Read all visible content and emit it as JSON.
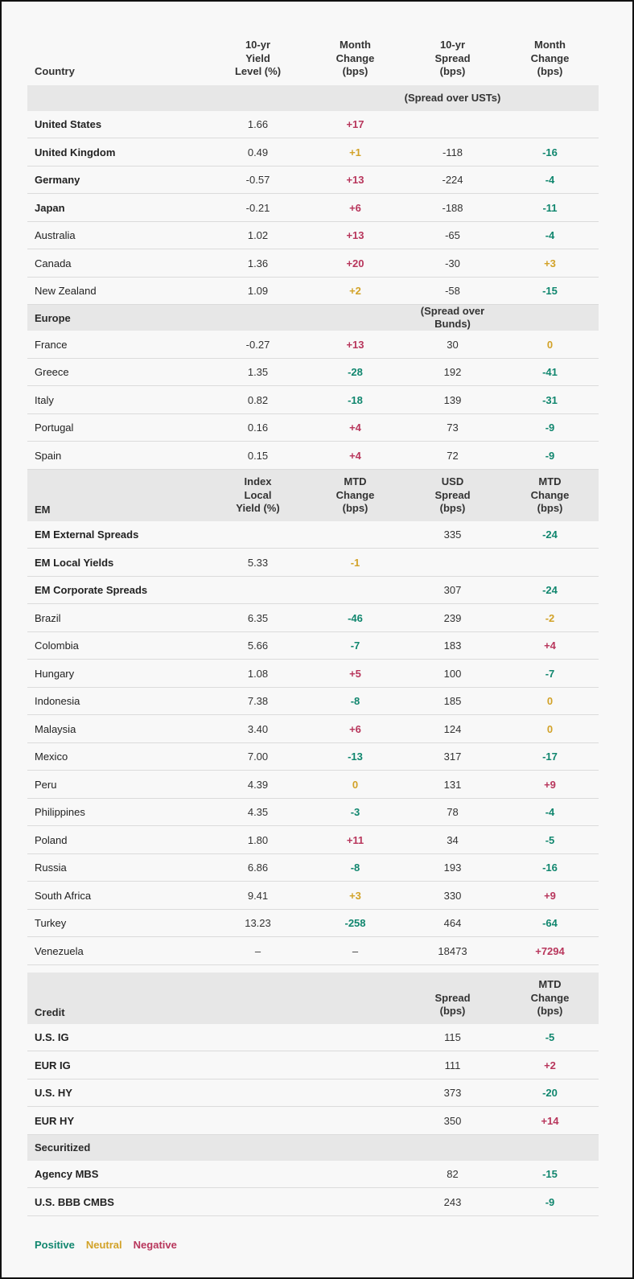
{
  "colors": {
    "positive": "#10866E",
    "neutral": "#D2A228",
    "negative": "#B8365C",
    "bar_bg": "#E7E7E7",
    "row_border": "#DBDBDB",
    "page_bg": "#F8F8F8"
  },
  "chart_data": {
    "type": "table",
    "header": {
      "country": "Country",
      "cols": [
        "10-yr\nYield\nLevel (%)",
        "Month\nChange\n(bps)",
        "10-yr\nSpread\n(bps)",
        "Month\nChange\n(bps)"
      ]
    },
    "groups": [
      {
        "bar": {
          "label": "",
          "cols": [
            "",
            "",
            "(Spread over USTs)",
            ""
          ]
        },
        "rows": [
          {
            "label": "United States",
            "bold": true,
            "cells": [
              {
                "v": "1.66"
              },
              {
                "v": "+17",
                "c": "negative"
              },
              {
                "v": ""
              },
              {
                "v": ""
              }
            ]
          },
          {
            "label": "United Kingdom",
            "bold": true,
            "cells": [
              {
                "v": "0.49"
              },
              {
                "v": "+1",
                "c": "neutral"
              },
              {
                "v": "-118"
              },
              {
                "v": "-16",
                "c": "positive"
              }
            ]
          },
          {
            "label": "Germany",
            "bold": true,
            "cells": [
              {
                "v": "-0.57"
              },
              {
                "v": "+13",
                "c": "negative"
              },
              {
                "v": "-224"
              },
              {
                "v": "-4",
                "c": "positive"
              }
            ]
          },
          {
            "label": "Japan",
            "bold": true,
            "cells": [
              {
                "v": "-0.21"
              },
              {
                "v": "+6",
                "c": "negative"
              },
              {
                "v": "-188"
              },
              {
                "v": "-11",
                "c": "positive"
              }
            ]
          },
          {
            "label": "Australia",
            "bold": false,
            "cells": [
              {
                "v": "1.02"
              },
              {
                "v": "+13",
                "c": "negative"
              },
              {
                "v": "-65"
              },
              {
                "v": "-4",
                "c": "positive"
              }
            ]
          },
          {
            "label": "Canada",
            "bold": false,
            "cells": [
              {
                "v": "1.36"
              },
              {
                "v": "+20",
                "c": "negative"
              },
              {
                "v": "-30"
              },
              {
                "v": "+3",
                "c": "neutral"
              }
            ]
          },
          {
            "label": "New Zealand",
            "bold": false,
            "cells": [
              {
                "v": "1.09"
              },
              {
                "v": "+2",
                "c": "neutral"
              },
              {
                "v": "-58"
              },
              {
                "v": "-15",
                "c": "positive"
              }
            ]
          }
        ]
      },
      {
        "bar": {
          "label": "Europe",
          "cols": [
            "",
            "",
            "(Spread over Bunds)",
            ""
          ]
        },
        "rows": [
          {
            "label": "France",
            "bold": false,
            "cells": [
              {
                "v": "-0.27"
              },
              {
                "v": "+13",
                "c": "negative"
              },
              {
                "v": "30"
              },
              {
                "v": "0",
                "c": "neutral"
              }
            ]
          },
          {
            "label": "Greece",
            "bold": false,
            "cells": [
              {
                "v": "1.35"
              },
              {
                "v": "-28",
                "c": "positive"
              },
              {
                "v": "192"
              },
              {
                "v": "-41",
                "c": "positive"
              }
            ]
          },
          {
            "label": "Italy",
            "bold": false,
            "cells": [
              {
                "v": "0.82"
              },
              {
                "v": "-18",
                "c": "positive"
              },
              {
                "v": "139"
              },
              {
                "v": "-31",
                "c": "positive"
              }
            ]
          },
          {
            "label": "Portugal",
            "bold": false,
            "cells": [
              {
                "v": "0.16"
              },
              {
                "v": "+4",
                "c": "negative"
              },
              {
                "v": "73"
              },
              {
                "v": "-9",
                "c": "positive"
              }
            ]
          },
          {
            "label": "Spain",
            "bold": false,
            "cells": [
              {
                "v": "0.15"
              },
              {
                "v": "+4",
                "c": "negative"
              },
              {
                "v": "72"
              },
              {
                "v": "-9",
                "c": "positive"
              }
            ]
          }
        ]
      },
      {
        "bar": {
          "label": "EM",
          "cols": [
            "Index\nLocal\nYield (%)",
            "MTD\nChange\n(bps)",
            "USD\nSpread\n(bps)",
            "MTD\nChange\n(bps)"
          ]
        },
        "rows": [
          {
            "label": "EM External Spreads",
            "bold": true,
            "cells": [
              {
                "v": ""
              },
              {
                "v": ""
              },
              {
                "v": "335"
              },
              {
                "v": "-24",
                "c": "positive"
              }
            ]
          },
          {
            "label": "EM Local Yields",
            "bold": true,
            "cells": [
              {
                "v": "5.33"
              },
              {
                "v": "-1",
                "c": "neutral"
              },
              {
                "v": ""
              },
              {
                "v": ""
              }
            ]
          },
          {
            "label": "EM Corporate Spreads",
            "bold": true,
            "cells": [
              {
                "v": ""
              },
              {
                "v": ""
              },
              {
                "v": "307"
              },
              {
                "v": "-24",
                "c": "positive"
              }
            ]
          },
          {
            "label": "Brazil",
            "bold": false,
            "cells": [
              {
                "v": "6.35"
              },
              {
                "v": "-46",
                "c": "positive"
              },
              {
                "v": "239"
              },
              {
                "v": "-2",
                "c": "neutral"
              }
            ]
          },
          {
            "label": "Colombia",
            "bold": false,
            "cells": [
              {
                "v": "5.66"
              },
              {
                "v": "-7",
                "c": "positive"
              },
              {
                "v": "183"
              },
              {
                "v": "+4",
                "c": "negative"
              }
            ]
          },
          {
            "label": "Hungary",
            "bold": false,
            "cells": [
              {
                "v": "1.08"
              },
              {
                "v": "+5",
                "c": "negative"
              },
              {
                "v": "100"
              },
              {
                "v": "-7",
                "c": "positive"
              }
            ]
          },
          {
            "label": "Indonesia",
            "bold": false,
            "cells": [
              {
                "v": "7.38"
              },
              {
                "v": "-8",
                "c": "positive"
              },
              {
                "v": "185"
              },
              {
                "v": "0",
                "c": "neutral"
              }
            ]
          },
          {
            "label": "Malaysia",
            "bold": false,
            "cells": [
              {
                "v": "3.40"
              },
              {
                "v": "+6",
                "c": "negative"
              },
              {
                "v": "124"
              },
              {
                "v": "0",
                "c": "neutral"
              }
            ]
          },
          {
            "label": "Mexico",
            "bold": false,
            "cells": [
              {
                "v": "7.00"
              },
              {
                "v": "-13",
                "c": "positive"
              },
              {
                "v": "317"
              },
              {
                "v": "-17",
                "c": "positive"
              }
            ]
          },
          {
            "label": "Peru",
            "bold": false,
            "cells": [
              {
                "v": "4.39"
              },
              {
                "v": "0",
                "c": "neutral"
              },
              {
                "v": "131"
              },
              {
                "v": "+9",
                "c": "negative"
              }
            ]
          },
          {
            "label": "Philippines",
            "bold": false,
            "cells": [
              {
                "v": "4.35"
              },
              {
                "v": "-3",
                "c": "positive"
              },
              {
                "v": "78"
              },
              {
                "v": "-4",
                "c": "positive"
              }
            ]
          },
          {
            "label": "Poland",
            "bold": false,
            "cells": [
              {
                "v": "1.80"
              },
              {
                "v": "+11",
                "c": "negative"
              },
              {
                "v": "34"
              },
              {
                "v": "-5",
                "c": "positive"
              }
            ]
          },
          {
            "label": "Russia",
            "bold": false,
            "cells": [
              {
                "v": "6.86"
              },
              {
                "v": "-8",
                "c": "positive"
              },
              {
                "v": "193"
              },
              {
                "v": "-16",
                "c": "positive"
              }
            ]
          },
          {
            "label": "South Africa",
            "bold": false,
            "cells": [
              {
                "v": "9.41"
              },
              {
                "v": "+3",
                "c": "neutral"
              },
              {
                "v": "330"
              },
              {
                "v": "+9",
                "c": "negative"
              }
            ]
          },
          {
            "label": "Turkey",
            "bold": false,
            "cells": [
              {
                "v": "13.23"
              },
              {
                "v": "-258",
                "c": "positive"
              },
              {
                "v": "464"
              },
              {
                "v": "-64",
                "c": "positive"
              }
            ]
          },
          {
            "label": "Venezuela",
            "bold": false,
            "cells": [
              {
                "v": "–"
              },
              {
                "v": "–"
              },
              {
                "v": "18473"
              },
              {
                "v": "+7294",
                "c": "negative"
              }
            ]
          }
        ]
      },
      {
        "bar": {
          "label": "Credit",
          "gap_before": true,
          "cols": [
            "",
            "",
            "Spread\n(bps)",
            "MTD\nChange\n(bps)"
          ]
        },
        "rows": [
          {
            "label": "U.S. IG",
            "bold": true,
            "cells": [
              {
                "v": ""
              },
              {
                "v": ""
              },
              {
                "v": "115"
              },
              {
                "v": "-5",
                "c": "positive"
              }
            ]
          },
          {
            "label": "EUR IG",
            "bold": true,
            "cells": [
              {
                "v": ""
              },
              {
                "v": ""
              },
              {
                "v": "111"
              },
              {
                "v": "+2",
                "c": "negative"
              }
            ]
          },
          {
            "label": "U.S. HY",
            "bold": true,
            "cells": [
              {
                "v": ""
              },
              {
                "v": ""
              },
              {
                "v": "373"
              },
              {
                "v": "-20",
                "c": "positive"
              }
            ]
          },
          {
            "label": "EUR HY",
            "bold": true,
            "cells": [
              {
                "v": ""
              },
              {
                "v": ""
              },
              {
                "v": "350"
              },
              {
                "v": "+14",
                "c": "negative"
              }
            ]
          }
        ]
      },
      {
        "bar": {
          "label": "Securitized",
          "cols": [
            "",
            "",
            "",
            ""
          ]
        },
        "rows": [
          {
            "label": "Agency MBS",
            "bold": true,
            "cells": [
              {
                "v": ""
              },
              {
                "v": ""
              },
              {
                "v": "82"
              },
              {
                "v": "-15",
                "c": "positive"
              }
            ]
          },
          {
            "label": "U.S. BBB CMBS",
            "bold": true,
            "cells": [
              {
                "v": ""
              },
              {
                "v": ""
              },
              {
                "v": "243"
              },
              {
                "v": "-9",
                "c": "positive"
              }
            ]
          }
        ]
      }
    ],
    "legend": [
      {
        "label": "Positive",
        "color": "positive"
      },
      {
        "label": "Neutral",
        "color": "neutral"
      },
      {
        "label": "Negative",
        "color": "negative"
      }
    ]
  }
}
